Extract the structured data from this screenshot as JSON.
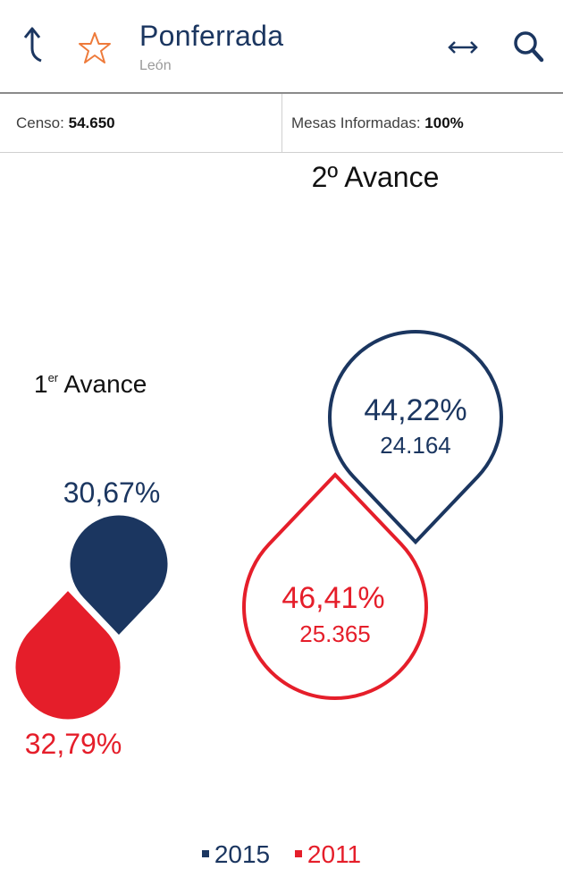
{
  "header": {
    "title": "Ponferrada",
    "subtitle": "León",
    "icons": [
      "back-arrow-icon",
      "star-icon",
      "expand-icon",
      "search-icon"
    ]
  },
  "info": {
    "censo_label": "Censo:",
    "censo_value": "54.650",
    "mesas_label": "Mesas Informadas:",
    "mesas_value": "100%"
  },
  "colors": {
    "series_2015": "#1b3660",
    "series_2011": "#e51e2a",
    "text": "#1b3660"
  },
  "chart_data": {
    "type": "bubble-comparison",
    "groups": [
      {
        "label": "1",
        "label_sup": "er",
        "label_rest": " Avance",
        "series": [
          {
            "name": "2015",
            "percent": 30.67,
            "percent_label": "30,67%"
          },
          {
            "name": "2011",
            "percent": 32.79,
            "percent_label": "32,79%"
          }
        ]
      },
      {
        "label": "2º Avance",
        "series": [
          {
            "name": "2015",
            "percent": 44.22,
            "percent_label": "44,22%",
            "votes_label": "24.164"
          },
          {
            "name": "2011",
            "percent": 46.41,
            "percent_label": "46,41%",
            "votes_label": "25.365"
          }
        ]
      }
    ],
    "legend": [
      {
        "name": "2015"
      },
      {
        "name": "2011"
      }
    ]
  }
}
